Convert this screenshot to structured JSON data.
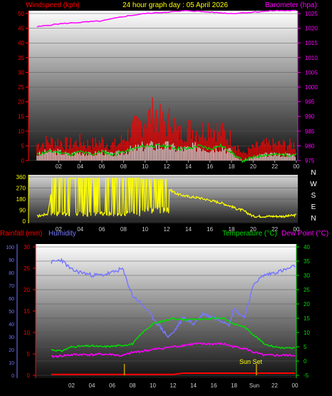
{
  "header": {
    "title": "24 hour graph day : 05 April 2026",
    "wind_label": "Windspeed (kph)",
    "baro_label": "Barometer (hpa)",
    "rain_label": "Rainfall (mm)",
    "hum_label": "Humidity",
    "temp_label": "Temperature (°C)",
    "dew_label": "Dew Point (°C)",
    "sunset_label": "Sun Set"
  },
  "colors": {
    "wind": "#ff0000",
    "gust": "#ffffff",
    "avg": "#00cc00",
    "baro": "#ff00ff",
    "dir": "#ffff00",
    "hum": "#7777ff",
    "temp": "#00dd00",
    "dew": "#ff00ff",
    "rain": "#ff0000",
    "sun": "#c8a000"
  },
  "chart_data": [
    {
      "type": "line",
      "name": "wind-baro",
      "x_ticks": [
        "02",
        "04",
        "06",
        "08",
        "10",
        "12",
        "14",
        "16",
        "18",
        "20",
        "22",
        "00"
      ],
      "y_left": {
        "ticks": [
          "0",
          "5",
          "10",
          "15",
          "20",
          "25",
          "30",
          "35",
          "40",
          "45",
          "50"
        ],
        "ylim": [
          0,
          50
        ]
      },
      "y_right": {
        "ticks": [
          "975",
          "980",
          "985",
          "990",
          "995",
          "1000",
          "1005",
          "1010",
          "1015",
          "1020",
          "1025"
        ],
        "ylim": [
          975,
          1025
        ]
      },
      "series": [
        {
          "key": "wind_gust",
          "x": [
            0,
            1,
            2,
            3,
            4,
            5,
            6,
            7,
            7.5,
            8,
            9,
            10,
            11,
            11.5,
            12,
            12.5,
            13,
            14,
            15,
            16,
            17,
            18,
            18.5,
            19,
            20,
            21,
            22,
            23,
            24
          ],
          "y": [
            5,
            6,
            6,
            5,
            6,
            5,
            6,
            5,
            5,
            7,
            10,
            13,
            15,
            12,
            11,
            14,
            8,
            10,
            9,
            11,
            9,
            7,
            5,
            2,
            4,
            5,
            5,
            5,
            5
          ]
        },
        {
          "key": "wind_avg",
          "x": [
            0,
            1,
            2,
            3,
            4,
            5,
            6,
            7,
            8,
            9,
            10,
            11,
            12,
            13,
            14,
            15,
            16,
            17,
            18,
            18.5,
            19,
            20,
            21,
            22,
            23,
            24
          ],
          "y": [
            2,
            3,
            3,
            2,
            3,
            2,
            3,
            2,
            3,
            4,
            5,
            5,
            5,
            4,
            4,
            5,
            4,
            5,
            3,
            1,
            0,
            1,
            2,
            2,
            2,
            2
          ]
        },
        {
          "key": "baro",
          "x": [
            0,
            2,
            4,
            6,
            8,
            10,
            12,
            14,
            16,
            18,
            20,
            22,
            24
          ],
          "y": [
            1020.5,
            1021.5,
            1022,
            1022.5,
            1024,
            1025,
            1025.5,
            1026,
            1025.5,
            1025,
            1025.5,
            1026,
            1026
          ]
        }
      ]
    },
    {
      "type": "line",
      "name": "wind-direction",
      "x_ticks": [
        "02",
        "04",
        "06",
        "08",
        "10",
        "12",
        "14",
        "16",
        "18",
        "20",
        "22",
        "00"
      ],
      "y_ticks": [
        "0",
        "90",
        "180",
        "270",
        "360"
      ],
      "ylim": [
        0,
        360
      ],
      "compass": [
        "N",
        "W",
        "S",
        "E",
        "N"
      ],
      "series": [
        {
          "key": "direction",
          "x": [
            0,
            1,
            1.5,
            2,
            3,
            3.5,
            4,
            5,
            5.5,
            6,
            7,
            7.5,
            8,
            9,
            10,
            11,
            12,
            13,
            14,
            15,
            16,
            17,
            18,
            18.5,
            19,
            20,
            21,
            22,
            23,
            24
          ],
          "y": [
            40,
            60,
            350,
            300,
            250,
            350,
            40,
            350,
            60,
            40,
            60,
            350,
            40,
            350,
            60,
            300,
            270,
            220,
            200,
            190,
            170,
            150,
            120,
            100,
            90,
            40,
            40,
            40,
            40,
            50
          ]
        }
      ]
    },
    {
      "type": "line",
      "name": "rain-hum-temp",
      "x_ticks": [
        "02",
        "04",
        "06",
        "08",
        "10",
        "12",
        "14",
        "16",
        "18",
        "Sun",
        "22",
        "00"
      ],
      "y_left_outer": {
        "ticks": [
          "0",
          "10",
          "20",
          "30",
          "40",
          "50",
          "60",
          "70",
          "80",
          "90",
          "100"
        ],
        "ylim": [
          0,
          100
        ]
      },
      "y_left_inner": {
        "ticks": [
          "0",
          "5",
          "10",
          "15",
          "20",
          "25",
          "30"
        ],
        "ylim": [
          0,
          30
        ]
      },
      "y_right": {
        "ticks": [
          "-5",
          "0",
          "5",
          "10",
          "15",
          "20",
          "25",
          "30",
          "35",
          "40"
        ],
        "ylim": [
          -5,
          40
        ]
      },
      "series": [
        {
          "key": "humidity",
          "x": [
            0,
            1,
            2,
            3,
            4,
            5,
            6,
            7,
            8,
            9,
            10,
            11,
            11.5,
            12,
            13,
            14,
            15,
            16,
            17,
            17.5,
            18,
            19,
            20,
            21,
            22,
            23,
            24
          ],
          "y": [
            88,
            90,
            82,
            80,
            78,
            78,
            80,
            83,
            62,
            55,
            45,
            35,
            30,
            33,
            45,
            40,
            48,
            45,
            42,
            40,
            52,
            45,
            72,
            78,
            80,
            82,
            85
          ]
        },
        {
          "key": "temperature",
          "x": [
            0,
            1,
            2,
            3,
            4,
            5,
            6,
            7,
            8,
            9,
            10,
            11,
            12,
            13,
            14,
            15,
            16,
            17,
            18,
            19,
            20,
            21,
            22,
            23,
            24
          ],
          "y": [
            4,
            3.5,
            5,
            5.2,
            5.3,
            5,
            5.2,
            5.5,
            6,
            10,
            13,
            14,
            15,
            14.5,
            14.7,
            14.5,
            15,
            15,
            13,
            12,
            9,
            6,
            5,
            4.5,
            4.5
          ]
        },
        {
          "key": "dew_point",
          "x": [
            0,
            1,
            2,
            3,
            4,
            5,
            6,
            7,
            8,
            9,
            10,
            11,
            12,
            13,
            14,
            15,
            16,
            17,
            18,
            19,
            20,
            21,
            22,
            23,
            24
          ],
          "y": [
            1.5,
            1.8,
            2.2,
            2.3,
            2.2,
            2.4,
            2.3,
            1.8,
            3,
            3.5,
            4,
            4.5,
            5,
            5.5,
            6,
            6,
            6,
            6,
            5,
            4.5,
            3,
            2,
            2,
            2,
            2
          ]
        },
        {
          "key": "rainfall",
          "x": [
            0,
            12,
            13,
            24
          ],
          "y": [
            0.2,
            0.2,
            0.5,
            0.5
          ]
        }
      ],
      "sunset_x": 20.2,
      "sun_markers_x": [
        7.2,
        20.2
      ]
    }
  ]
}
